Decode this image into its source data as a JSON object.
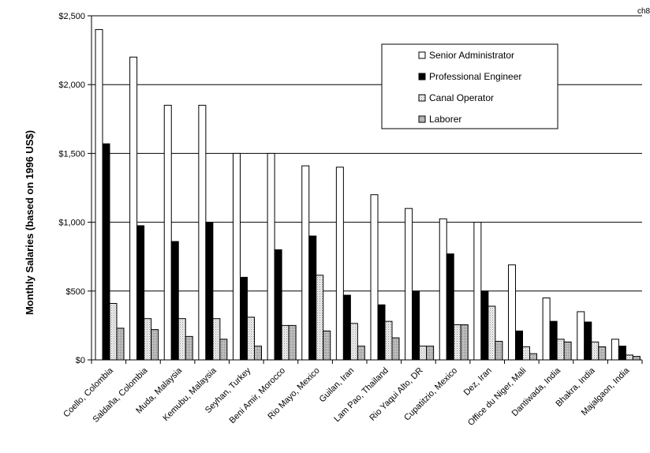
{
  "chart_data": {
    "type": "bar",
    "corner_label": "ch8",
    "ylabel": "Monthly Salaries (based on 1996 US$)",
    "xlabel": "",
    "title": "",
    "ylim": [
      0,
      2500
    ],
    "yticks": [
      0,
      500,
      1000,
      1500,
      2000,
      2500
    ],
    "ytick_labels": [
      "$0",
      "$500",
      "$1,000",
      "$1,500",
      "$2,000",
      "$2,500"
    ],
    "grid": "horizontal",
    "legend_position": "top-right",
    "categories": [
      "Coello, Colombia",
      "Saldaña, Colombia",
      "Muda, Malaysia",
      "Kemubu, Malaysia",
      "Seyhan, Turkey",
      "Beni Amir, Morocco",
      "Rio Mayo, Mexico",
      "Guilan, Iran",
      "Lam Pao, Thailand",
      "Rio Yaqui Alto, DR",
      "Cupatitzio, Mexico",
      "Dez, Iran",
      "Office du Niger, Mali",
      "Dantiwada, India",
      "Bhakra, India",
      "Majalgaon, India"
    ],
    "series": [
      {
        "name": "Senior Administrator",
        "color": "#ffffff",
        "pattern": "solid-white",
        "values": [
          2400,
          2200,
          1850,
          1850,
          1500,
          1500,
          1410,
          1400,
          1200,
          1100,
          1025,
          1000,
          690,
          450,
          350,
          150
        ]
      },
      {
        "name": "Professional Engineer",
        "color": "#000000",
        "pattern": "solid-black",
        "values": [
          1570,
          975,
          860,
          1000,
          600,
          800,
          900,
          470,
          400,
          500,
          770,
          500,
          210,
          280,
          275,
          100
        ]
      },
      {
        "name": "Canal Operator",
        "color": "#d9d9d9",
        "pattern": "dotted-light",
        "values": [
          410,
          300,
          300,
          300,
          310,
          250,
          615,
          265,
          280,
          100,
          255,
          390,
          95,
          150,
          130,
          35
        ]
      },
      {
        "name": "Laborer",
        "color": "#a6a6a6",
        "pattern": "dotted-medium",
        "values": [
          230,
          220,
          170,
          150,
          100,
          250,
          210,
          100,
          160,
          100,
          255,
          135,
          45,
          130,
          95,
          25
        ]
      }
    ]
  }
}
